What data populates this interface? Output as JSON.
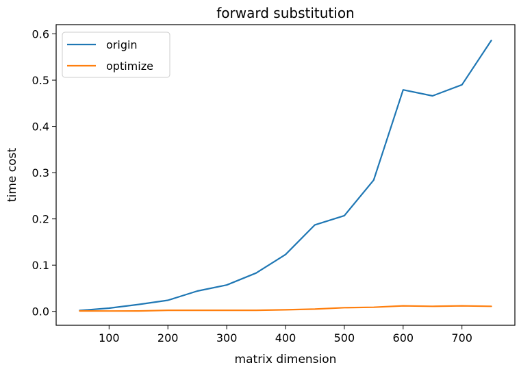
{
  "chart_data": {
    "type": "line",
    "title": "forward substitution",
    "xlabel": "matrix dimension",
    "ylabel": "time cost",
    "x": [
      50,
      100,
      150,
      200,
      250,
      300,
      350,
      400,
      450,
      500,
      550,
      600,
      650,
      700,
      750
    ],
    "xlim": [
      10,
      790
    ],
    "ylim": [
      -0.03,
      0.62
    ],
    "xticks": [
      "100",
      "200",
      "300",
      "400",
      "500",
      "600",
      "700"
    ],
    "yticks": [
      "0.0",
      "0.1",
      "0.2",
      "0.3",
      "0.4",
      "0.5",
      "0.6"
    ],
    "grid": false,
    "legend_position": "upper-left",
    "series": [
      {
        "name": "origin",
        "color": "#1f77b4",
        "values": [
          0.002,
          0.007,
          0.015,
          0.024,
          0.044,
          0.057,
          0.083,
          0.123,
          0.187,
          0.207,
          0.284,
          0.479,
          0.466,
          0.49,
          0.586
        ]
      },
      {
        "name": "optimize",
        "color": "#ff7f0e",
        "values": [
          0.001,
          0.0008,
          0.001,
          0.0025,
          0.0025,
          0.0025,
          0.0025,
          0.0035,
          0.005,
          0.008,
          0.009,
          0.012,
          0.011,
          0.012,
          0.011
        ]
      }
    ]
  }
}
